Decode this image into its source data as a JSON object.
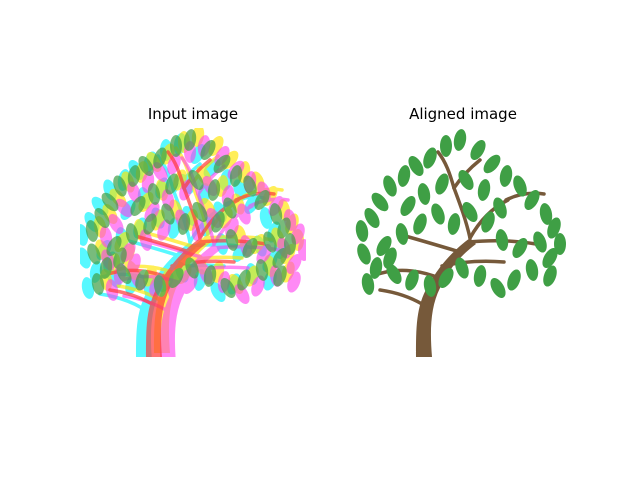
{
  "figure": {
    "panels": [
      {
        "title": "Input image"
      },
      {
        "title": "Aligned image"
      }
    ]
  },
  "colors": {
    "background": "#ffffff",
    "leaf_green": "#3f9f45",
    "trunk_brown": "#76593a",
    "channel_cyan": "#00f5ff",
    "channel_magenta": "#ff3cf0",
    "channel_yellow": "#ffe600",
    "channel_red": "#ff3a3a"
  }
}
